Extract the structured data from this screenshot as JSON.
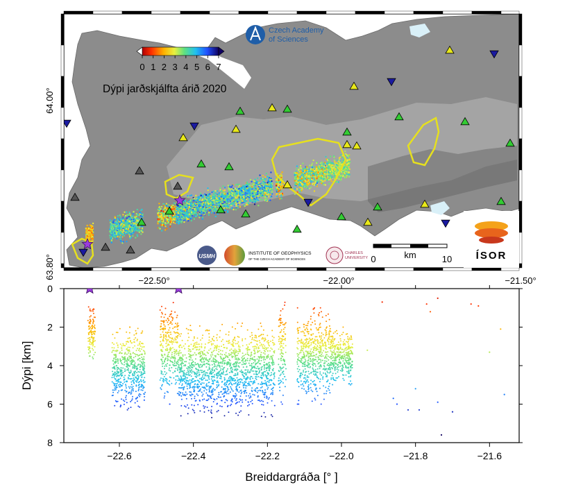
{
  "map": {
    "colorbar_ticks": [
      "0",
      "1",
      "2",
      "3",
      "4",
      "5",
      "6",
      "7"
    ],
    "title": "Dýpi jarðskjálfta árið 2020",
    "lat_labels": [
      "64.00°",
      "63.80°"
    ],
    "lon_labels": [
      "−22.50°",
      "−22.00°",
      "−21.50°"
    ],
    "scalebar": {
      "start": "0",
      "unit": "km",
      "end": "10"
    },
    "logos": {
      "czech_academy_line1": "Czech Academy",
      "czech_academy_line2": "of Sciences",
      "usmh": "USMH",
      "igp_line1": "INSTITUTE OF GEOPHYSICS",
      "igp_line2": "OF THE CZECH ACADEMY OF SCIENCES",
      "charles_line1": "CHARLES",
      "charles_line2": "UNIVERSITY",
      "isor": "ÍSOR"
    },
    "stations": {
      "green_triangle": "#33cc33",
      "yellow_triangle": "#e8e81a",
      "grey_triangle": "#555555",
      "blue_inverted_triangle": "#1a1aa0"
    },
    "event_star_color": "#9b3bdc",
    "fissure_outline_color": "#e6e01e"
  },
  "chart_data": {
    "type": "scatter",
    "xlabel": "Breiddargráða [° ]",
    "ylabel": "Dýpi [km]",
    "xlim": [
      -22.75,
      -21.52
    ],
    "ylim": [
      8,
      0
    ],
    "x_ticks": [
      "−22.6",
      "−22.4",
      "−22.2",
      "−22.0",
      "−21.8",
      "−21.6"
    ],
    "y_ticks": [
      "0",
      "2",
      "4",
      "6",
      "8"
    ],
    "colormap": "depth 0 km red → 3 km yellow/green → 7 km dark blue",
    "stars": [
      {
        "x": -22.68,
        "y": 0.0
      },
      {
        "x": -22.44,
        "y": 0.0
      }
    ],
    "clusters": [
      {
        "x_range": [
          -22.685,
          -22.665
        ],
        "depth_range": [
          0.8,
          3.8
        ]
      },
      {
        "x_range": [
          -22.62,
          -22.53
        ],
        "depth_range": [
          2.0,
          6.3
        ]
      },
      {
        "x_range": [
          -22.49,
          -22.44
        ],
        "depth_range": [
          0.2,
          6.0
        ]
      },
      {
        "x_range": [
          -22.44,
          -22.18
        ],
        "depth_range": [
          1.8,
          6.7
        ]
      },
      {
        "x_range": [
          -22.17,
          -22.15
        ],
        "depth_range": [
          0.2,
          6.0
        ]
      },
      {
        "x_range": [
          -22.12,
          -22.03
        ],
        "depth_range": [
          1.0,
          6.0
        ]
      },
      {
        "x_range": [
          -22.03,
          -21.97
        ],
        "depth_range": [
          2.0,
          5.0
        ]
      }
    ],
    "sparse_points": [
      {
        "x": -21.93,
        "y": 3.2
      },
      {
        "x": -21.89,
        "y": 0.7
      },
      {
        "x": -21.86,
        "y": 5.7
      },
      {
        "x": -21.85,
        "y": 6.0
      },
      {
        "x": -21.82,
        "y": 6.3
      },
      {
        "x": -21.8,
        "y": 5.2
      },
      {
        "x": -21.79,
        "y": 6.3
      },
      {
        "x": -21.77,
        "y": 0.8
      },
      {
        "x": -21.76,
        "y": 1.2
      },
      {
        "x": -21.74,
        "y": 0.5
      },
      {
        "x": -21.74,
        "y": 5.9
      },
      {
        "x": -21.73,
        "y": 7.6
      },
      {
        "x": -21.7,
        "y": 6.4
      },
      {
        "x": -21.65,
        "y": 0.8
      },
      {
        "x": -21.63,
        "y": 0.9
      },
      {
        "x": -21.57,
        "y": 2.1
      },
      {
        "x": -21.56,
        "y": 5.5
      },
      {
        "x": -21.6,
        "y": 3.3
      }
    ]
  }
}
